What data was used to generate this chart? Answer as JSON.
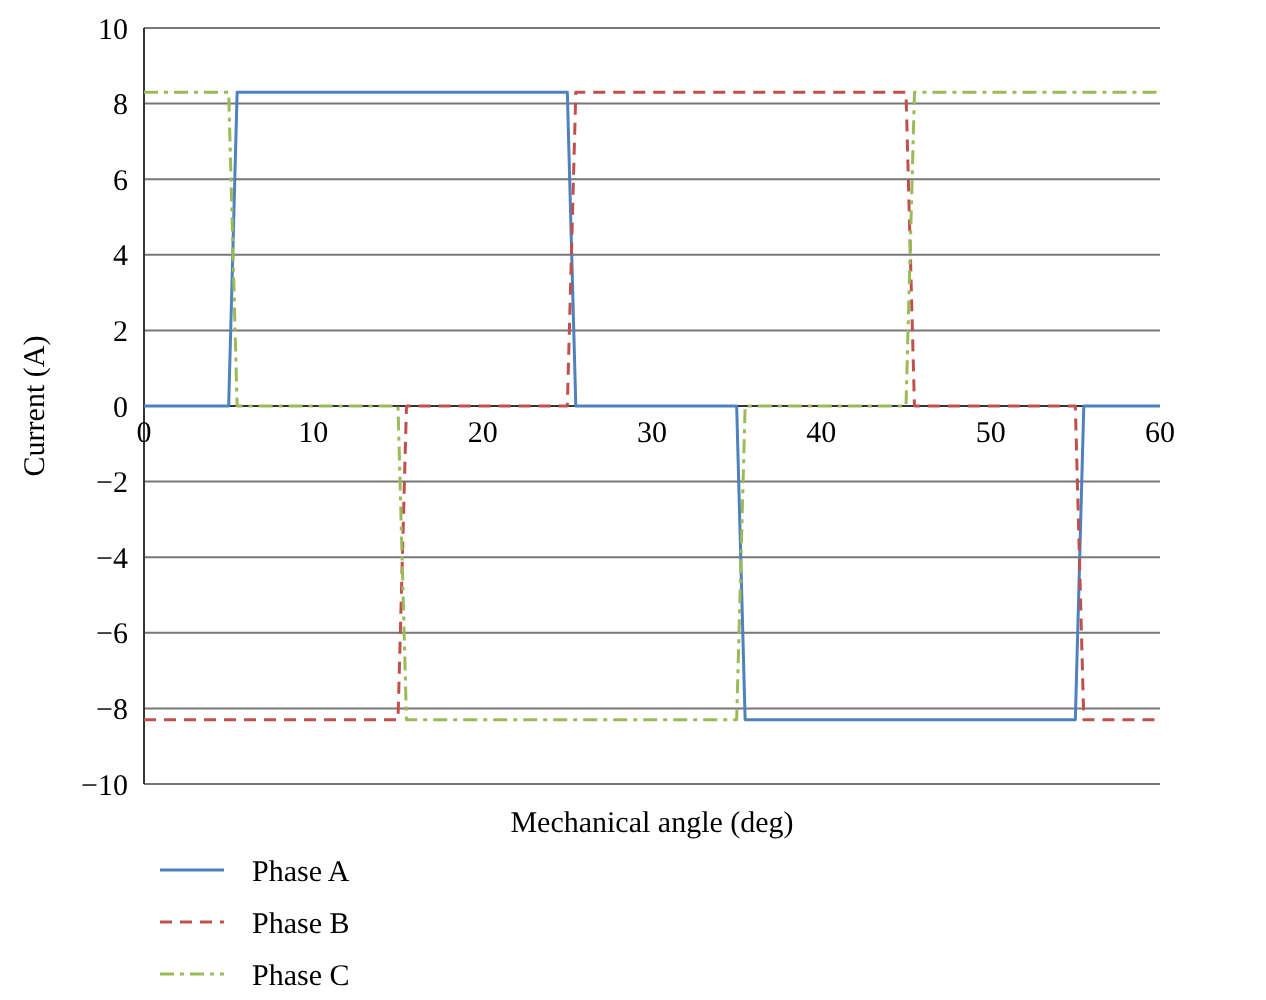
{
  "chart_data": {
    "type": "line",
    "xlabel": "Mechanical angle (deg)",
    "ylabel": "Current (A)",
    "xlim": [
      0,
      60
    ],
    "xticks": [
      0,
      10,
      20,
      30,
      40,
      50,
      60
    ],
    "ylim": [
      -10,
      10
    ],
    "yticks": [
      -10,
      -8,
      -6,
      -4,
      -2,
      0,
      2,
      4,
      6,
      8,
      10
    ],
    "grid": "y",
    "legend": "bottom left",
    "marker": "none",
    "series": [
      {
        "name": "Phase A",
        "color": "#4f81bd",
        "line_style": "solid",
        "x": [
          0,
          5,
          5.5,
          25,
          25.5,
          35,
          35.5,
          55,
          55.5,
          60
        ],
        "values": [
          0,
          0,
          8.3,
          8.3,
          0,
          0,
          -8.3,
          -8.3,
          0,
          0
        ]
      },
      {
        "name": "Phase B",
        "color": "#c0504d",
        "line_style": "dashed",
        "x": [
          0,
          15,
          15.5,
          25,
          25.5,
          45,
          45.5,
          55,
          55.5,
          60
        ],
        "values": [
          -8.3,
          -8.3,
          0,
          0,
          8.3,
          8.3,
          0,
          0,
          -8.3,
          -8.3
        ]
      },
      {
        "name": "Phase C",
        "color": "#9bbb59",
        "line_style": "dashdot",
        "x": [
          0,
          5,
          5.5,
          15,
          15.5,
          35,
          35.5,
          45,
          45.5,
          60
        ],
        "values": [
          8.3,
          8.3,
          0,
          0,
          -8.3,
          -8.3,
          0,
          0,
          8.3,
          8.3
        ]
      }
    ]
  }
}
